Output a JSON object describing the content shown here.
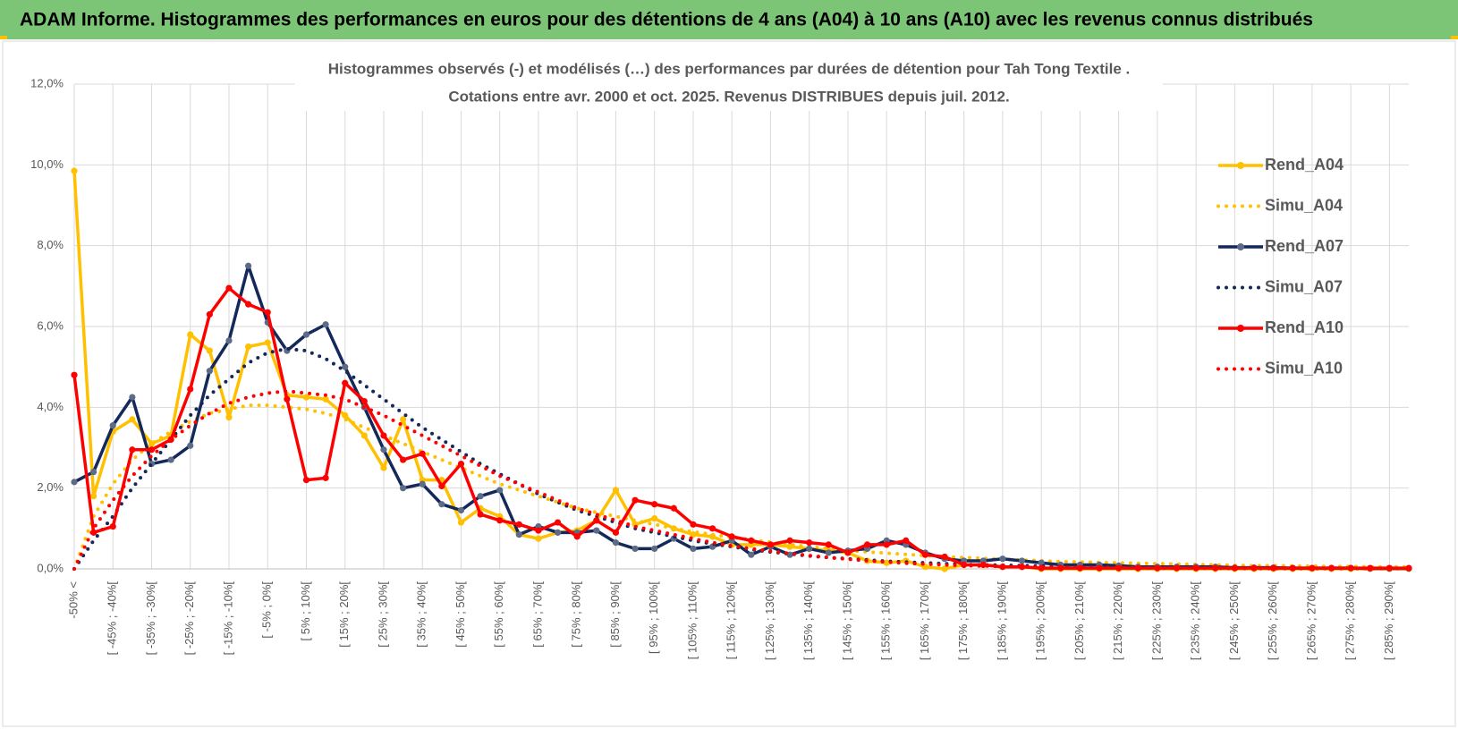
{
  "header": {
    "title": "ADAM Informe. Histogrammes des performances en euros pour des détentions de 4 ans (A04) à 10 ans (A10) avec les revenus connus distribués"
  },
  "chart_data": {
    "type": "line",
    "title": "Histogrammes observés (-) et modélisés (…) des performances par durées de détention pour Tah Tong Textile .",
    "subtitle": "Cotations entre avr. 2000 et oct. 2025. Revenus DISTRIBUES depuis juil. 2012.",
    "categories": [
      "-50% <",
      null,
      "[ -45% ; -40%[",
      null,
      "[ -35% ; -30%[",
      null,
      "[ -25% ; -20%[",
      null,
      "[ -15% ; -10%[",
      null,
      "[ -5% ; 0%[",
      null,
      "[ 5% ; 10%[",
      null,
      "[ 15% ; 20%[",
      null,
      "[ 25% ; 30%[",
      null,
      "[ 35% ; 40%[",
      null,
      "[ 45% ; 50%[",
      null,
      "[ 55% ; 60%[",
      null,
      "[ 65% ; 70%[",
      null,
      "[ 75% ; 80%[",
      null,
      "[ 85% ; 90%[",
      null,
      "[ 95% ; 100%[",
      null,
      "[ 105% ; 110%[",
      null,
      "[ 115% ; 120%[",
      null,
      "[ 125% ; 130%[",
      null,
      "[ 135% ; 140%[",
      null,
      "[ 145% ; 150%[",
      null,
      "[ 155% ; 160%[",
      null,
      "[ 165% ; 170%[",
      null,
      "[ 175% ; 180%[",
      null,
      "[ 185% ; 190%[",
      null,
      "[ 195% ; 200%[",
      null,
      "[ 205% ; 210%[",
      null,
      "[ 215% ; 220%[",
      null,
      "[ 225% ; 230%[",
      null,
      "[ 235% ; 240%[",
      null,
      "[ 245% ; 250%[",
      null,
      "[ 255% ; 260%[",
      null,
      "[ 265% ; 270%[",
      null,
      "[ 275% ; 280%[",
      null,
      "[ 285% ; 290%[",
      null
    ],
    "series": [
      {
        "name": "Rend_A04",
        "color": "#FFC000",
        "line_style": "solid",
        "marker": true,
        "values": [
          9.85,
          1.8,
          3.4,
          3.7,
          3.1,
          3.3,
          5.8,
          5.4,
          3.75,
          5.5,
          5.6,
          4.3,
          4.25,
          4.2,
          3.8,
          3.3,
          2.5,
          3.7,
          2.2,
          2.2,
          1.15,
          1.5,
          1.3,
          0.85,
          0.75,
          0.9,
          0.95,
          1.2,
          1.95,
          1.1,
          1.25,
          1.0,
          0.85,
          0.8,
          0.6,
          0.6,
          0.6,
          0.55,
          0.5,
          0.45,
          0.4,
          0.2,
          0.15,
          0.2,
          0.05,
          0,
          0.1,
          0.1,
          0.05,
          0.05,
          0,
          0,
          0,
          0,
          0,
          0,
          0,
          0,
          0,
          0,
          0,
          0,
          0,
          0,
          0,
          0,
          0,
          0,
          0,
          0
        ]
      },
      {
        "name": "Simu_A04",
        "color": "#FFC000",
        "line_style": "dotted",
        "marker": false,
        "values": [
          0,
          1.3,
          2.1,
          2.7,
          3.1,
          3.4,
          3.65,
          3.85,
          3.95,
          4.05,
          4.05,
          4.0,
          3.95,
          3.85,
          3.7,
          3.5,
          3.3,
          3.1,
          2.9,
          2.7,
          2.5,
          2.3,
          2.1,
          1.95,
          1.8,
          1.65,
          1.5,
          1.4,
          1.3,
          1.2,
          1.1,
          1.0,
          0.92,
          0.85,
          0.78,
          0.72,
          0.66,
          0.6,
          0.55,
          0.5,
          0.46,
          0.42,
          0.39,
          0.36,
          0.33,
          0.3,
          0.28,
          0.26,
          0.24,
          0.22,
          0.2,
          0.18,
          0.17,
          0.16,
          0.15,
          0.14,
          0.13,
          0.12,
          0.11,
          0.1,
          0.09,
          0.08,
          0.08,
          0.07,
          0.07,
          0.06,
          0.06,
          0.05,
          0.05,
          0.05
        ]
      },
      {
        "name": "Rend_A07",
        "color": "#14285A",
        "marker_color": "#5B6B88",
        "line_style": "solid",
        "marker": true,
        "values": [
          2.15,
          2.4,
          3.55,
          4.25,
          2.6,
          2.7,
          3.05,
          4.9,
          5.65,
          7.5,
          6.1,
          5.4,
          5.8,
          6.05,
          5.0,
          4.0,
          2.95,
          2.0,
          2.1,
          1.6,
          1.45,
          1.8,
          1.95,
          0.85,
          1.05,
          0.9,
          0.9,
          0.95,
          0.65,
          0.5,
          0.5,
          0.75,
          0.5,
          0.55,
          0.7,
          0.35,
          0.55,
          0.35,
          0.5,
          0.4,
          0.45,
          0.5,
          0.7,
          0.6,
          0.4,
          0.25,
          0.2,
          0.2,
          0.25,
          0.2,
          0.15,
          0.1,
          0.1,
          0.1,
          0.08,
          0.05,
          0.05,
          0.05,
          0.05,
          0.05,
          0.03,
          0.03,
          0.03,
          0.02,
          0.02,
          0.02,
          0.02,
          0.01,
          0.01,
          0.01
        ]
      },
      {
        "name": "Simu_A07",
        "color": "#14285A",
        "line_style": "dotted",
        "marker": false,
        "values": [
          0,
          0.7,
          1.3,
          2.0,
          2.6,
          3.2,
          3.8,
          4.3,
          4.7,
          5.1,
          5.35,
          5.45,
          5.4,
          5.2,
          4.9,
          4.55,
          4.2,
          3.85,
          3.5,
          3.2,
          2.9,
          2.6,
          2.35,
          2.1,
          1.85,
          1.65,
          1.45,
          1.3,
          1.15,
          1.0,
          0.9,
          0.8,
          0.7,
          0.62,
          0.55,
          0.48,
          0.42,
          0.37,
          0.32,
          0.28,
          0.25,
          0.22,
          0.19,
          0.17,
          0.15,
          0.13,
          0.11,
          0.1,
          0.09,
          0.08,
          0.07,
          0.06,
          0.05,
          0.05,
          0.04,
          0.04,
          0.03,
          0.03,
          0.03,
          0.02,
          0.02,
          0.02,
          0.02,
          0.01,
          0.01,
          0.01,
          0.01,
          0.01,
          0.01,
          0.01
        ]
      },
      {
        "name": "Rend_A10",
        "color": "#FF0000",
        "line_style": "solid",
        "marker": true,
        "values": [
          4.8,
          0.9,
          1.05,
          2.95,
          2.95,
          3.2,
          4.45,
          6.3,
          6.95,
          6.55,
          6.35,
          4.2,
          2.2,
          2.25,
          4.6,
          4.15,
          3.3,
          2.7,
          2.85,
          2.05,
          2.6,
          1.35,
          1.2,
          1.1,
          0.95,
          1.15,
          0.8,
          1.2,
          0.9,
          1.7,
          1.6,
          1.5,
          1.1,
          1.0,
          0.8,
          0.7,
          0.6,
          0.7,
          0.65,
          0.6,
          0.4,
          0.6,
          0.6,
          0.7,
          0.35,
          0.3,
          0.1,
          0.1,
          0.05,
          0.05,
          0.02,
          0.02,
          0.02,
          0.02,
          0.02,
          0.02,
          0.02,
          0.02,
          0.02,
          0.02,
          0.02,
          0.02,
          0.02,
          0.02,
          0.02,
          0.02,
          0.02,
          0.02,
          0.02,
          0.02
        ]
      },
      {
        "name": "Simu_A10",
        "color": "#FF0000",
        "line_style": "dotted",
        "marker": false,
        "values": [
          0,
          1.0,
          1.7,
          2.3,
          2.8,
          3.2,
          3.55,
          3.85,
          4.1,
          4.25,
          4.35,
          4.4,
          4.35,
          4.3,
          4.2,
          4.0,
          3.8,
          3.55,
          3.3,
          3.05,
          2.8,
          2.55,
          2.3,
          2.1,
          1.9,
          1.7,
          1.5,
          1.35,
          1.2,
          1.05,
          0.95,
          0.85,
          0.75,
          0.65,
          0.57,
          0.5,
          0.44,
          0.38,
          0.33,
          0.28,
          0.24,
          0.2,
          0.17,
          0.14,
          0.12,
          0.1,
          0.08,
          0.07,
          0.06,
          0.05,
          0.04,
          0.04,
          0.03,
          0.03,
          0.03,
          0.02,
          0.02,
          0.02,
          0.02,
          0.02,
          0.01,
          0.01,
          0.01,
          0.01,
          0.01,
          0.01,
          0.01,
          0.01,
          0.01,
          0.01
        ]
      }
    ],
    "ylim": [
      0,
      12
    ],
    "yticks": [
      {
        "value": 0,
        "label": "0,0%"
      },
      {
        "value": 2,
        "label": "2,0%"
      },
      {
        "value": 4,
        "label": "4,0%"
      },
      {
        "value": 6,
        "label": "6,0%"
      },
      {
        "value": 8,
        "label": "8,0%"
      },
      {
        "value": 10,
        "label": "10,0%"
      },
      {
        "value": 12,
        "label": "12,0%"
      }
    ],
    "grid": true,
    "legend": "right"
  }
}
